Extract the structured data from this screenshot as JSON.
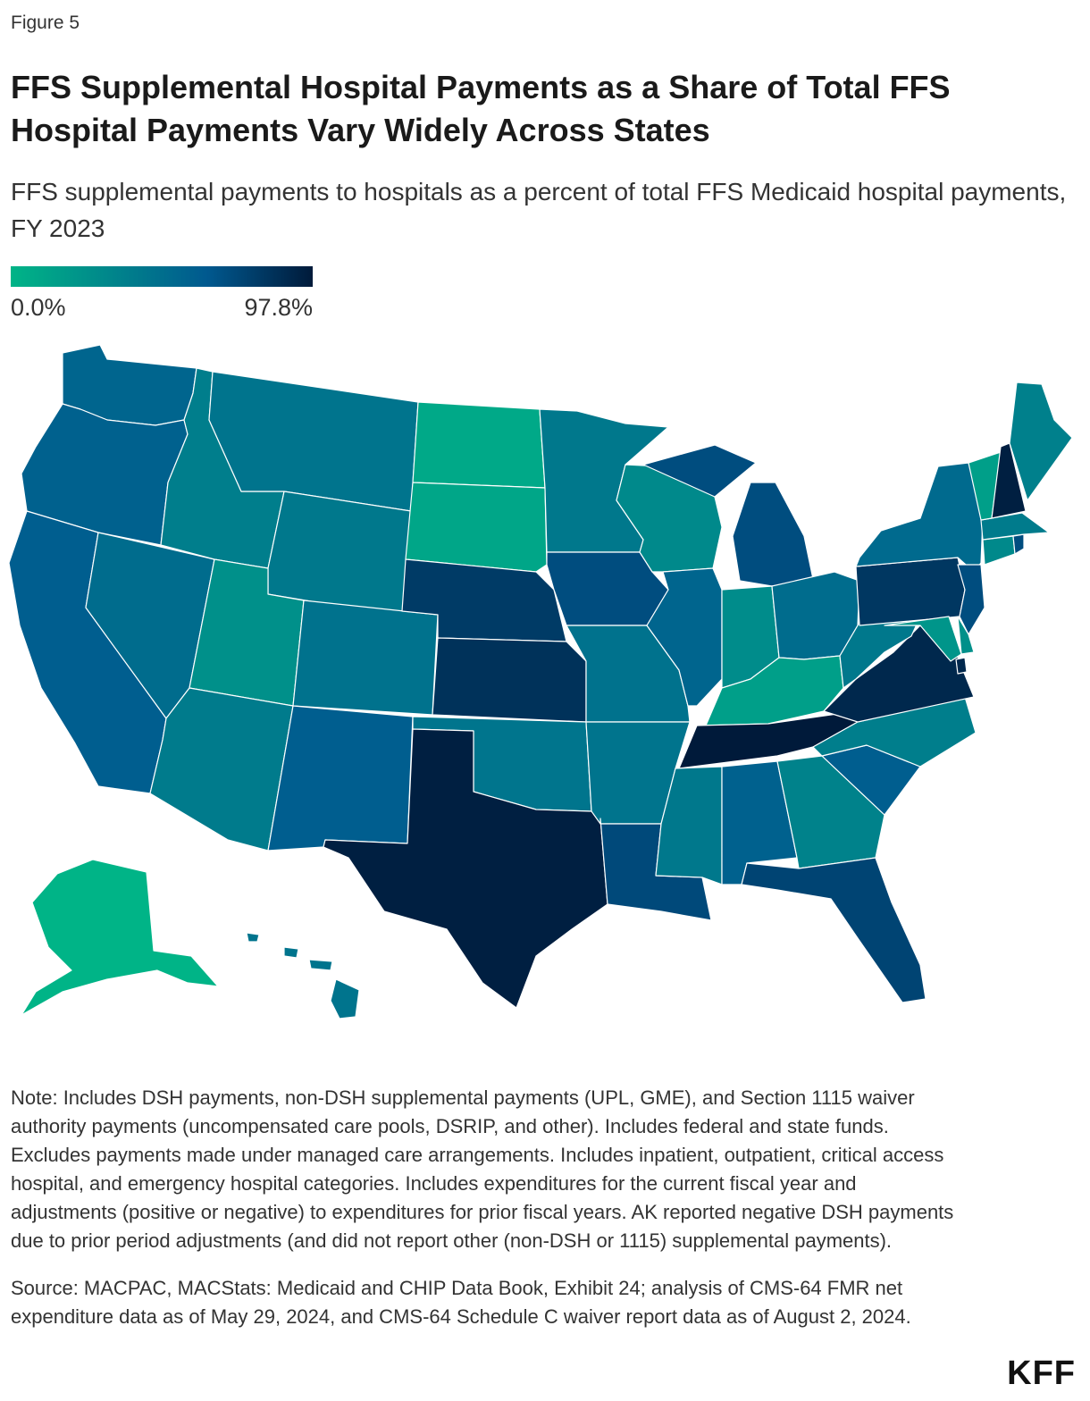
{
  "figure_label": "Figure 5",
  "title": "FFS Supplemental Hospital Payments as a Share of Total FFS Hospital Payments Vary Widely Across States",
  "subtitle": "FFS supplemental payments to hospitals as a percent of total FFS Medicaid hospital payments, FY 2023",
  "legend": {
    "min_label": "0.0%",
    "max_label": "97.8%",
    "min_color": "#00b487",
    "mid_color": "#00598f",
    "max_color": "#001a3a"
  },
  "chart_data": {
    "type": "choropleth",
    "metric": "FFS supplemental payments to hospitals as a percent of total FFS Medicaid hospital payments",
    "fiscal_year": "FY 2023",
    "range": [
      0.0,
      97.8
    ],
    "units": "percent",
    "values_note": "State values estimated from fill color; only legend endpoints are printed.",
    "states": [
      {
        "state": "WA",
        "value": 55
      },
      {
        "state": "OR",
        "value": 58
      },
      {
        "state": "CA",
        "value": 60
      },
      {
        "state": "NV",
        "value": 50
      },
      {
        "state": "ID",
        "value": 38
      },
      {
        "state": "MT",
        "value": 45
      },
      {
        "state": "WY",
        "value": 42
      },
      {
        "state": "UT",
        "value": 25
      },
      {
        "state": "AZ",
        "value": 40
      },
      {
        "state": "CO",
        "value": 46
      },
      {
        "state": "NM",
        "value": 60
      },
      {
        "state": "ND",
        "value": 8
      },
      {
        "state": "SD",
        "value": 10
      },
      {
        "state": "NE",
        "value": 80
      },
      {
        "state": "KS",
        "value": 85
      },
      {
        "state": "OK",
        "value": 44
      },
      {
        "state": "TX",
        "value": 95
      },
      {
        "state": "MN",
        "value": 42
      },
      {
        "state": "IA",
        "value": 70
      },
      {
        "state": "MO",
        "value": 46
      },
      {
        "state": "AR",
        "value": 45
      },
      {
        "state": "LA",
        "value": 72
      },
      {
        "state": "WI",
        "value": 30
      },
      {
        "state": "IL",
        "value": 55
      },
      {
        "state": "MI",
        "value": 70
      },
      {
        "state": "IN",
        "value": 28
      },
      {
        "state": "OH",
        "value": 50
      },
      {
        "state": "KY",
        "value": 15
      },
      {
        "state": "TN",
        "value": 97.8
      },
      {
        "state": "MS",
        "value": 42
      },
      {
        "state": "AL",
        "value": 58
      },
      {
        "state": "GA",
        "value": 35
      },
      {
        "state": "FL",
        "value": 75
      },
      {
        "state": "SC",
        "value": 60
      },
      {
        "state": "NC",
        "value": 38
      },
      {
        "state": "VA",
        "value": 90
      },
      {
        "state": "WV",
        "value": 42
      },
      {
        "state": "PA",
        "value": 82
      },
      {
        "state": "NY",
        "value": 52
      },
      {
        "state": "VT",
        "value": 15
      },
      {
        "state": "NH",
        "value": 95
      },
      {
        "state": "ME",
        "value": 36
      },
      {
        "state": "MA",
        "value": 40
      },
      {
        "state": "RI",
        "value": 70
      },
      {
        "state": "CT",
        "value": 30
      },
      {
        "state": "NJ",
        "value": 70
      },
      {
        "state": "DE",
        "value": 25
      },
      {
        "state": "MD",
        "value": 22
      },
      {
        "state": "DC",
        "value": 90
      },
      {
        "state": "AK",
        "value": 0
      },
      {
        "state": "HI",
        "value": 45
      }
    ]
  },
  "note": "Note: Includes DSH payments, non-DSH supplemental payments (UPL, GME), and Section 1115 waiver authority payments (uncompensated care pools, DSRIP, and other). Includes federal and state funds. Excludes payments made under managed care arrangements. Includes inpatient, outpatient, critical access hospital, and emergency hospital categories. Includes expenditures for the current fiscal year and adjustments (positive or negative) to expenditures for prior fiscal years. AK reported negative DSH payments due to prior period adjustments (and did not report other (non-DSH or 1115) supplemental payments).",
  "source": "Source: MACPAC, MACStats: Medicaid and CHIP Data Book, Exhibit 24;  analysis of CMS-64 FMR net expenditure data as of May 29, 2024, and CMS-64 Schedule C waiver report data as of August 2, 2024.",
  "logo": "KFF"
}
